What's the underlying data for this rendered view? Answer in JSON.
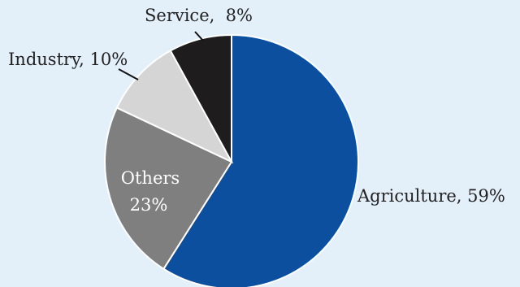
{
  "chart_data": {
    "type": "pie",
    "title": "",
    "slices": [
      {
        "label": "Agriculture",
        "value": 59,
        "display": "Agriculture, 59%",
        "color": "#0c4f9e"
      },
      {
        "label": "Others",
        "value": 23,
        "display_line1": "Others",
        "display_line2": "23%",
        "color": "#7f7f7f"
      },
      {
        "label": "Industry",
        "value": 10,
        "display": "Industry, 10%",
        "color": "#d5d5d5"
      },
      {
        "label": "Service",
        "value": 8,
        "display": "Service,  8%",
        "color": "#1e1c1c"
      }
    ],
    "start": "12 o'clock",
    "direction": "clockwise",
    "slice_border_color": "#ffffff",
    "leader_line_color": "#111111"
  }
}
